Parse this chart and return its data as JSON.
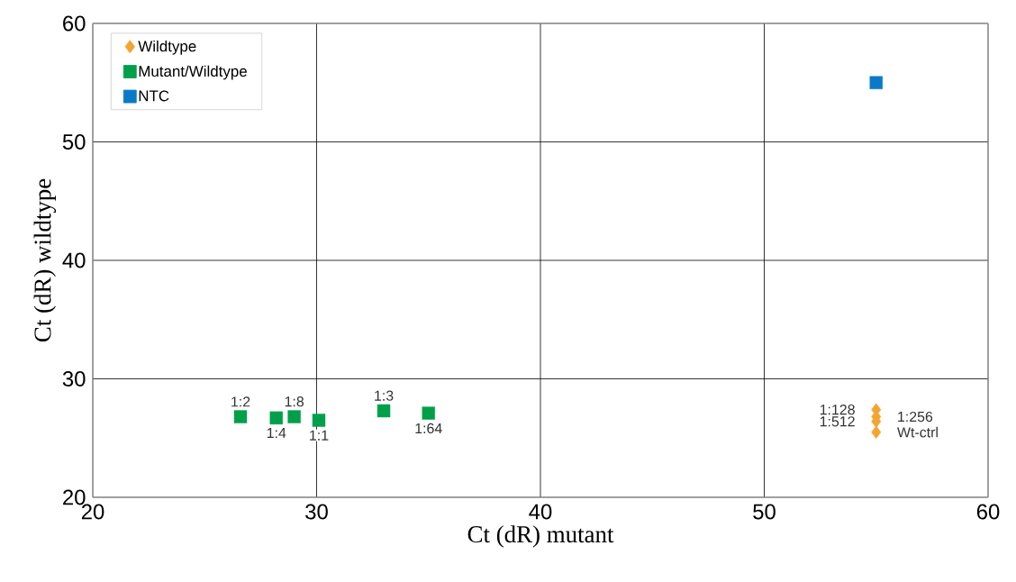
{
  "chart_data": {
    "type": "scatter",
    "xlabel": "Ct (dR) mutant",
    "ylabel": "Ct (dR) wildtype",
    "xlim": [
      20,
      60
    ],
    "ylim": [
      20,
      60
    ],
    "xticks": [
      20,
      30,
      40,
      50,
      60
    ],
    "yticks": [
      20,
      30,
      40,
      50,
      60
    ],
    "grid": true,
    "legend": "top left",
    "series": [
      {
        "name": "Wildtype",
        "color": "#f4a431",
        "marker": "diamond",
        "x": [
          55.0,
          55.0,
          55.0,
          55.0
        ],
        "values": [
          27.4,
          26.8,
          26.4,
          25.5
        ]
      },
      {
        "name": "Mutant/Wildtype",
        "color": "#00a04a",
        "marker": "square",
        "x": [
          26.6,
          28.2,
          29.0,
          30.1,
          33.0,
          35.0
        ],
        "values": [
          26.8,
          26.7,
          26.8,
          26.5,
          27.3,
          27.1
        ]
      },
      {
        "name": "NTC",
        "color": "#0a7ac8",
        "marker": "square",
        "x": [
          55.0
        ],
        "values": [
          55.0
        ]
      }
    ],
    "annotations": [
      {
        "text": "1:2",
        "x": 26.6,
        "y": 26.8
      },
      {
        "text": "1:4",
        "x": 28.2,
        "y": 26.7
      },
      {
        "text": "1:8",
        "x": 29.0,
        "y": 26.8
      },
      {
        "text": "1:1",
        "x": 30.1,
        "y": 26.5
      },
      {
        "text": "1:3",
        "x": 33.0,
        "y": 27.3
      },
      {
        "text": "1:64",
        "x": 35.0,
        "y": 27.1
      },
      {
        "text": "1:128",
        "x": 55.0,
        "y": 27.4
      },
      {
        "text": "1:256",
        "x": 55.0,
        "y": 26.8
      },
      {
        "text": "1:512",
        "x": 55.0,
        "y": 26.4
      },
      {
        "text": "Wt-ctrl",
        "x": 55.0,
        "y": 25.5
      }
    ]
  }
}
